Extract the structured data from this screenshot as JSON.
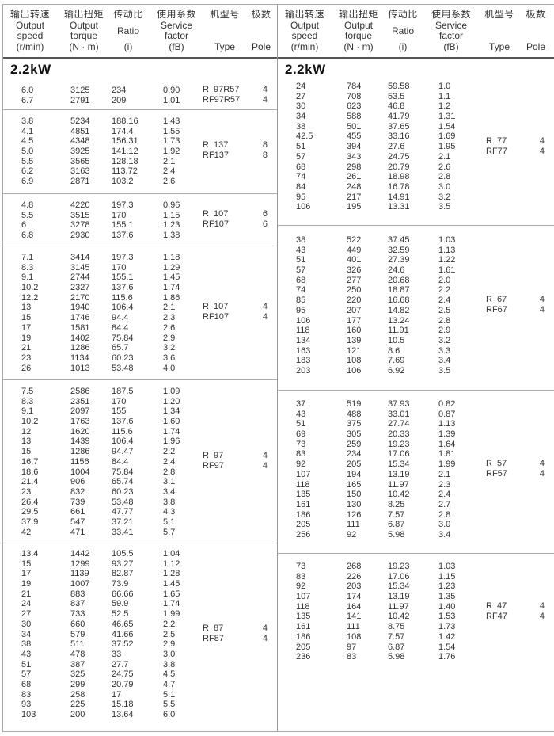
{
  "header": {
    "speed": {
      "cn": "输出转速",
      "en": [
        "Output",
        "speed",
        "(r/min)"
      ]
    },
    "torque": {
      "cn": "输出扭矩",
      "en": [
        "Output",
        "torque",
        "(N · m)"
      ]
    },
    "ratio": {
      "cn": "传动比",
      "en": [
        "Ratio",
        "(i)"
      ]
    },
    "service": {
      "cn": "使用系数",
      "en": [
        "Service",
        "factor",
        "(fB)"
      ]
    },
    "type": {
      "cn": "机型号",
      "en": [
        "Type"
      ]
    },
    "pole": {
      "cn": "极数",
      "en": [
        "Pole"
      ]
    }
  },
  "left": {
    "title": "2.2kW",
    "sections": [
      {
        "type": [
          "R  97R57",
          "RF97R57"
        ],
        "pole": [
          "4",
          "4"
        ],
        "rows": [
          [
            "6.0",
            "3125",
            "234",
            "0.90"
          ],
          [
            "6.7",
            "2791",
            "209",
            "1.01"
          ]
        ]
      },
      {
        "type": [
          "R  137",
          "RF137"
        ],
        "pole": [
          "8",
          "8"
        ],
        "rows": [
          [
            "3.8",
            "5234",
            "188.16",
            "1.43"
          ],
          [
            "4.1",
            "4851",
            "174.4",
            "1.55"
          ],
          [
            "4.5",
            "4348",
            "156.31",
            "1.73"
          ],
          [
            "5.0",
            "3925",
            "141.12",
            "1.92"
          ],
          [
            "5.5",
            "3565",
            "128.18",
            "2.1"
          ],
          [
            "6.2",
            "3163",
            "113.72",
            "2.4"
          ],
          [
            "6.9",
            "2871",
            "103.2",
            "2.6"
          ]
        ]
      },
      {
        "type": [
          "R  107",
          "RF107"
        ],
        "pole": [
          "6",
          "6"
        ],
        "rows": [
          [
            "4.8",
            "4220",
            "197.3",
            "0.96"
          ],
          [
            "5.5",
            "3515",
            "170",
            "1.15"
          ],
          [
            "6",
            "3278",
            "155.1",
            "1.23"
          ],
          [
            "6.8",
            "2930",
            "137.6",
            "1.38"
          ]
        ]
      },
      {
        "type": [
          "R  107",
          "RF107"
        ],
        "pole": [
          "4",
          "4"
        ],
        "rows": [
          [
            "7.1",
            "3414",
            "197.3",
            "1.18"
          ],
          [
            "8.3",
            "3145",
            "170",
            "1.29"
          ],
          [
            "9.1",
            "2744",
            "155.1",
            "1.45"
          ],
          [
            "10.2",
            "2327",
            "137.6",
            "1.74"
          ],
          [
            "12.2",
            "2170",
            "115.6",
            "1.86"
          ],
          [
            "13",
            "1940",
            "106.4",
            "2.1"
          ],
          [
            "15",
            "1746",
            "94.4",
            "2.3"
          ],
          [
            "17",
            "1581",
            "84.4",
            "2.6"
          ],
          [
            "19",
            "1402",
            "75.84",
            "2.9"
          ],
          [
            "21",
            "1286",
            "65.7",
            "3.2"
          ],
          [
            "23",
            "1134",
            "60.23",
            "3.6"
          ],
          [
            "26",
            "1013",
            "53.48",
            "4.0"
          ]
        ]
      },
      {
        "type": [
          "R  97",
          "RF97"
        ],
        "pole": [
          "4",
          "4"
        ],
        "rows": [
          [
            "7.5",
            "2586",
            "187.5",
            "1.09"
          ],
          [
            "8.3",
            "2351",
            "170",
            "1.20"
          ],
          [
            "9.1",
            "2097",
            "155",
            "1.34"
          ],
          [
            "10.2",
            "1763",
            "137.6",
            "1.60"
          ],
          [
            "12",
            "1620",
            "115.6",
            "1.74"
          ],
          [
            "13",
            "1439",
            "106.4",
            "1.96"
          ],
          [
            "15",
            "1286",
            "94.47",
            "2.2"
          ],
          [
            "16.7",
            "1156",
            "84.4",
            "2.4"
          ],
          [
            "18.6",
            "1004",
            "75.84",
            "2.8"
          ],
          [
            "21.4",
            "906",
            "65.74",
            "3.1"
          ],
          [
            "23",
            "832",
            "60.23",
            "3.4"
          ],
          [
            "26.4",
            "739",
            "53.48",
            "3.8"
          ],
          [
            "29.5",
            "661",
            "47.77",
            "4.3"
          ],
          [
            "37.9",
            "547",
            "37.21",
            "5.1"
          ],
          [
            "42",
            "471",
            "33.41",
            "5.7"
          ]
        ]
      },
      {
        "type": [
          "R  87",
          "RF87"
        ],
        "pole": [
          "4",
          "4"
        ],
        "rows": [
          [
            "13.4",
            "1442",
            "105.5",
            "1.04"
          ],
          [
            "15",
            "1299",
            "93.27",
            "1.12"
          ],
          [
            "17",
            "1139",
            "82.87",
            "1.28"
          ],
          [
            "19",
            "1007",
            "73.9",
            "1.45"
          ],
          [
            "21",
            "883",
            "66.66",
            "1.65"
          ],
          [
            "24",
            "837",
            "59.9",
            "1.74"
          ],
          [
            "27",
            "733",
            "52.5",
            "1.99"
          ],
          [
            "30",
            "660",
            "46.65",
            "2.2"
          ],
          [
            "34",
            "579",
            "41.66",
            "2.5"
          ],
          [
            "38",
            "511",
            "37.52",
            "2.9"
          ],
          [
            "43",
            "478",
            "33",
            "3.0"
          ],
          [
            "51",
            "387",
            "27.7",
            "3.8"
          ],
          [
            "57",
            "325",
            "24.75",
            "4.5"
          ],
          [
            "68",
            "299",
            "20.79",
            "4.7"
          ],
          [
            "83",
            "258",
            "17",
            "5.1"
          ],
          [
            "93",
            "225",
            "15.18",
            "5.5"
          ],
          [
            "103",
            "200",
            "13.64",
            "6.0"
          ]
        ]
      }
    ]
  },
  "right": {
    "title": "2.2kW",
    "sections": [
      {
        "type": [
          "R  77",
          "RF77"
        ],
        "pole": [
          "4",
          "4"
        ],
        "rows": [
          [
            "24",
            "784",
            "59.58",
            "1.0"
          ],
          [
            "27",
            "708",
            "53.5",
            "1.1"
          ],
          [
            "30",
            "623",
            "46.8",
            "1.2"
          ],
          [
            "34",
            "588",
            "41.79",
            "1.31"
          ],
          [
            "38",
            "501",
            "37.65",
            "1.54"
          ],
          [
            "42.5",
            "455",
            "33.16",
            "1.69"
          ],
          [
            "51",
            "394",
            "27.6",
            "1.95"
          ],
          [
            "57",
            "343",
            "24.75",
            "2.1"
          ],
          [
            "68",
            "298",
            "20.79",
            "2.6"
          ],
          [
            "74",
            "261",
            "18.98",
            "2.8"
          ],
          [
            "84",
            "248",
            "16.78",
            "3.0"
          ],
          [
            "95",
            "217",
            "14.91",
            "3.2"
          ],
          [
            "106",
            "195",
            "13.31",
            "3.5"
          ]
        ]
      },
      {
        "type": [
          "R  67",
          "RF67"
        ],
        "pole": [
          "4",
          "4"
        ],
        "rows": [
          [
            "38",
            "522",
            "37.45",
            "1.03"
          ],
          [
            "43",
            "449",
            "32.59",
            "1.13"
          ],
          [
            "51",
            "401",
            "27.39",
            "1.22"
          ],
          [
            "57",
            "326",
            "24.6",
            "1.61"
          ],
          [
            "68",
            "277",
            "20.68",
            "2.0"
          ],
          [
            "74",
            "250",
            "18.87",
            "2.2"
          ],
          [
            "85",
            "220",
            "16.68",
            "2.4"
          ],
          [
            "95",
            "207",
            "14.82",
            "2.5"
          ],
          [
            "106",
            "177",
            "13.24",
            "2.8"
          ],
          [
            "118",
            "160",
            "11.91",
            "2.9"
          ],
          [
            "134",
            "139",
            "10.5",
            "3.2"
          ],
          [
            "163",
            "121",
            "8.6",
            "3.3"
          ],
          [
            "183",
            "108",
            "7.69",
            "3.4"
          ],
          [
            "203",
            "106",
            "6.92",
            "3.5"
          ]
        ]
      },
      {
        "type": [
          "R  57",
          "RF57"
        ],
        "pole": [
          "4",
          "4"
        ],
        "rows": [
          [
            "37",
            "519",
            "37.93",
            "0.82"
          ],
          [
            "43",
            "488",
            "33.01",
            "0.87"
          ],
          [
            "51",
            "375",
            "27.74",
            "1.13"
          ],
          [
            "69",
            "305",
            "20.33",
            "1.39"
          ],
          [
            "73",
            "259",
            "19.23",
            "1.64"
          ],
          [
            "83",
            "234",
            "17.06",
            "1.81"
          ],
          [
            "92",
            "205",
            "15.34",
            "1.99"
          ],
          [
            "107",
            "194",
            "13.19",
            "2.1"
          ],
          [
            "118",
            "165",
            "11.97",
            "2.3"
          ],
          [
            "135",
            "150",
            "10.42",
            "2.4"
          ],
          [
            "161",
            "130",
            "8.25",
            "2.7"
          ],
          [
            "186",
            "126",
            "7.57",
            "2.8"
          ],
          [
            "205",
            "111",
            "6.87",
            "3.0"
          ],
          [
            "256",
            "92",
            "5.98",
            "3.4"
          ]
        ]
      },
      {
        "type": [
          "R  47",
          "RF47"
        ],
        "pole": [
          "4",
          "4"
        ],
        "rows": [
          [
            "73",
            "268",
            "19.23",
            "1.03"
          ],
          [
            "83",
            "226",
            "17.06",
            "1.15"
          ],
          [
            "92",
            "203",
            "15.34",
            "1.23"
          ],
          [
            "107",
            "174",
            "13.19",
            "1.35"
          ],
          [
            "118",
            "164",
            "11.97",
            "1.40"
          ],
          [
            "135",
            "141",
            "10.42",
            "1.53"
          ],
          [
            "161",
            "111",
            "8.75",
            "1.73"
          ],
          [
            "186",
            "108",
            "7.57",
            "1.42"
          ],
          [
            "205",
            "97",
            "6.87",
            "1.54"
          ],
          [
            "236",
            "83",
            "5.98",
            "1.76"
          ]
        ]
      }
    ]
  }
}
